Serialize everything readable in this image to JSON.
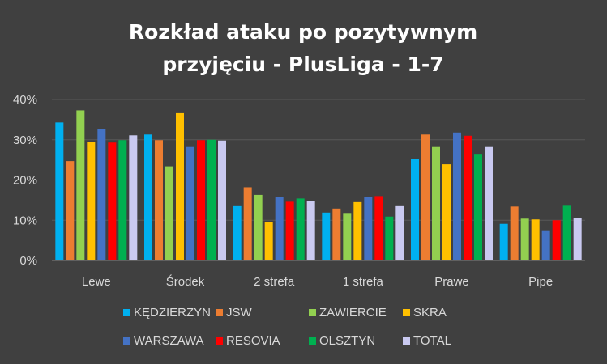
{
  "chart_data": {
    "type": "bar",
    "title_lines": [
      "Rozkład ataku po pozytywnym",
      "przyjęciu - PlusLiga - 1-7"
    ],
    "categories": [
      "Lewe",
      "Środek",
      "2 strefa",
      "1 strefa",
      "Prawe",
      "Pipe"
    ],
    "y_ticks": [
      "0%",
      "10%",
      "20%",
      "30%",
      "40%"
    ],
    "ylim": [
      0,
      40
    ],
    "grid": true,
    "legend_position": "bottom",
    "series": [
      {
        "name": "KĘDZIERZYN",
        "color": "#00b0f0",
        "values": [
          34.3,
          31.3,
          13.5,
          11.9,
          25.3,
          9.1
        ]
      },
      {
        "name": "JSW",
        "color": "#ed7d31",
        "values": [
          24.7,
          29.9,
          18.2,
          12.9,
          31.3,
          13.4
        ]
      },
      {
        "name": "ZAWIERCIE",
        "color": "#92d050",
        "values": [
          37.3,
          23.4,
          16.3,
          11.8,
          28.2,
          10.4
        ]
      },
      {
        "name": "SKRA",
        "color": "#ffc000",
        "values": [
          29.4,
          36.6,
          9.5,
          14.5,
          23.9,
          10.2
        ]
      },
      {
        "name": "WARSZAWA",
        "color": "#4472c4",
        "values": [
          32.7,
          28.2,
          15.8,
          15.8,
          31.8,
          7.5
        ]
      },
      {
        "name": "RESOVIA",
        "color": "#ff0000",
        "values": [
          29.3,
          29.9,
          14.6,
          16.0,
          31.0,
          10.0
        ]
      },
      {
        "name": "OLSZTYN",
        "color": "#00b050",
        "values": [
          29.9,
          30.0,
          15.4,
          10.9,
          26.3,
          13.6
        ]
      },
      {
        "name": "TOTAL",
        "color": "#c9c9f0",
        "values": [
          31.1,
          29.8,
          14.7,
          13.5,
          28.2,
          10.6
        ]
      }
    ]
  }
}
